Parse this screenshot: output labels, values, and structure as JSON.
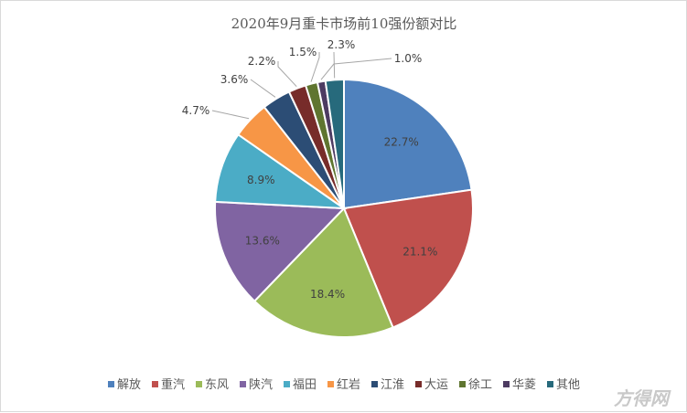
{
  "chart_data": {
    "type": "pie",
    "title": "2020年9月重卡市场前10强份额对比",
    "categories": [
      "解放",
      "重汽",
      "东风",
      "陕汽",
      "福田",
      "红岩",
      "江淮",
      "大运",
      "徐工",
      "华菱",
      "其他"
    ],
    "values": [
      22.7,
      21.1,
      18.4,
      13.6,
      8.9,
      4.7,
      3.6,
      2.2,
      1.5,
      1.0,
      2.3
    ],
    "value_labels": [
      "22.7%",
      "21.1%",
      "18.4%",
      "13.6%",
      "8.9%",
      "4.7%",
      "3.6%",
      "2.2%",
      "1.5%",
      "1.0%",
      "2.3%"
    ],
    "label_placement": [
      "inside",
      "inside",
      "inside",
      "inside",
      "inside",
      "outside",
      "outside",
      "outside",
      "outside",
      "outside",
      "outside"
    ],
    "colors": [
      "#4f81bd",
      "#c0504d",
      "#9bbb59",
      "#8064a2",
      "#4bacc6",
      "#f79646",
      "#2c4d75",
      "#772c2a",
      "#5f7530",
      "#4d3b62",
      "#276a7c"
    ],
    "legend_position": "bottom"
  },
  "watermark": {
    "text": "方得网"
  }
}
